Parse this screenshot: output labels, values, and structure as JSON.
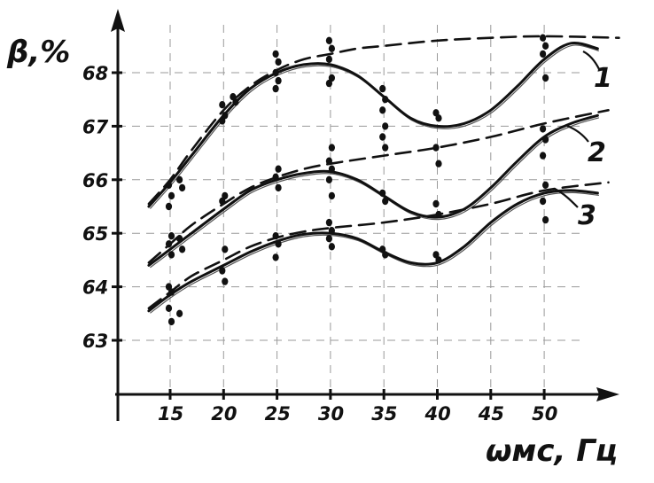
{
  "chart_data": {
    "type": "line",
    "title": "",
    "ylabel": "β,%",
    "xlabel": "ωмс, Гц",
    "x_ticks": [
      15,
      20,
      25,
      30,
      35,
      40,
      45,
      50
    ],
    "y_ticks": [
      63,
      64,
      65,
      66,
      67,
      68
    ],
    "xlim": [
      10,
      58
    ],
    "ylim": [
      62,
      69
    ],
    "grid": true,
    "series": [
      {
        "name": "1",
        "style": "solid",
        "x": [
          13,
          15,
          17,
          20,
          22.5,
          25,
          27.5,
          30,
          32.5,
          35,
          37.5,
          40,
          42.5,
          45,
          47.5,
          50,
          52.5,
          55
        ],
        "y": [
          65.5,
          65.95,
          66.45,
          67.2,
          67.7,
          68.0,
          68.15,
          68.15,
          67.95,
          67.55,
          67.15,
          67.0,
          67.05,
          67.3,
          67.75,
          68.25,
          68.55,
          68.45
        ]
      },
      {
        "name": "1",
        "style": "dashed",
        "x": [
          13,
          15,
          17,
          20,
          22.5,
          25,
          27.5,
          30,
          32.5,
          35,
          40,
          45,
          50,
          57
        ],
        "y": [
          65.55,
          66.0,
          66.55,
          67.3,
          67.75,
          68.05,
          68.25,
          68.35,
          68.45,
          68.5,
          68.6,
          68.65,
          68.68,
          68.65
        ]
      },
      {
        "name": "2",
        "style": "solid",
        "x": [
          13,
          15,
          17,
          20,
          22.5,
          25,
          27.5,
          30,
          32.5,
          35,
          37.5,
          40,
          42.5,
          45,
          47.5,
          50,
          52.5,
          55
        ],
        "y": [
          64.4,
          64.7,
          65.0,
          65.45,
          65.8,
          66.0,
          66.12,
          66.15,
          66.0,
          65.7,
          65.4,
          65.3,
          65.45,
          65.85,
          66.35,
          66.8,
          67.05,
          67.2
        ]
      },
      {
        "name": "2",
        "style": "dashed",
        "x": [
          13,
          15,
          17,
          20,
          22.5,
          25,
          27.5,
          30,
          35,
          40,
          45,
          50,
          56
        ],
        "y": [
          64.45,
          64.8,
          65.15,
          65.55,
          65.85,
          66.05,
          66.2,
          66.3,
          66.45,
          66.6,
          66.8,
          67.05,
          67.3
        ]
      },
      {
        "name": "3",
        "style": "solid",
        "x": [
          13,
          15,
          17,
          20,
          22.5,
          25,
          27.5,
          30,
          32.5,
          35,
          37.5,
          40,
          42.5,
          45,
          47.5,
          50,
          52.5,
          55
        ],
        "y": [
          63.55,
          63.85,
          64.1,
          64.4,
          64.65,
          64.85,
          64.98,
          65.0,
          64.9,
          64.65,
          64.45,
          64.45,
          64.75,
          65.2,
          65.55,
          65.75,
          65.8,
          65.75
        ]
      },
      {
        "name": "3",
        "style": "dashed",
        "x": [
          13,
          15,
          17,
          20,
          22.5,
          25,
          27.5,
          30,
          35,
          40,
          45,
          50,
          56
        ],
        "y": [
          63.6,
          63.9,
          64.2,
          64.5,
          64.75,
          64.92,
          65.03,
          65.1,
          65.2,
          65.35,
          65.55,
          65.8,
          65.95
        ]
      }
    ],
    "points": [
      {
        "x": 15,
        "y": [
          65.9,
          65.7,
          65.5,
          64.95,
          64.8,
          64.6,
          64.0,
          63.9,
          63.6,
          63.35
        ]
      },
      {
        "x": 16,
        "y": [
          66.0,
          65.85,
          64.9,
          64.7,
          63.5
        ]
      },
      {
        "x": 20,
        "y": [
          67.4,
          67.2,
          67.1,
          65.7,
          65.6,
          64.7,
          64.3,
          64.1
        ]
      },
      {
        "x": 21,
        "y": [
          67.55,
          67.45
        ]
      },
      {
        "x": 25,
        "y": [
          68.35,
          68.2,
          68.0,
          67.85,
          67.7,
          66.2,
          66.05,
          65.85,
          64.95,
          64.8,
          64.55
        ]
      },
      {
        "x": 30,
        "y": [
          68.6,
          68.45,
          68.25,
          67.9,
          67.8,
          66.6,
          66.35,
          66.2,
          66.0,
          65.7,
          65.2,
          65.05,
          64.9,
          64.75
        ]
      },
      {
        "x": 35,
        "y": [
          67.7,
          67.5,
          67.3,
          67.0,
          66.8,
          66.6,
          65.75,
          65.6,
          64.7,
          64.6
        ]
      },
      {
        "x": 40,
        "y": [
          67.25,
          67.15,
          66.6,
          66.3,
          65.55,
          65.35,
          64.6,
          64.5
        ]
      },
      {
        "x": 50,
        "y": [
          68.65,
          68.5,
          68.35,
          67.9,
          66.95,
          66.75,
          66.45,
          65.9,
          65.6,
          65.25
        ]
      }
    ],
    "curve_labels": [
      "1",
      "2",
      "3"
    ]
  }
}
